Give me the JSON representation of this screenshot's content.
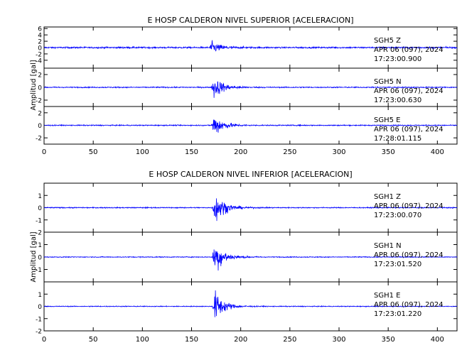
{
  "trace_color": "#0000ff",
  "chart_data": [
    {
      "type": "line",
      "title": "E HOSP CALDERON NIVEL SUPERIOR [ACELERACION]",
      "ylabel": "Amplitud [gal]",
      "xlim": [
        0,
        420
      ],
      "x_ticks": [
        0,
        50,
        100,
        150,
        200,
        250,
        300,
        350,
        400
      ],
      "panels": [
        {
          "station": "SGH5",
          "component": "Z",
          "date_line": "APR 06 (097), 2024",
          "time_line": "17:23:00.900",
          "ylim": [
            -6.5,
            6.5
          ],
          "y_ticks": [
            -4,
            -2,
            0,
            2,
            4,
            6
          ],
          "onset_s": 168,
          "peak_amplitude": 2.6,
          "noise_amplitude": 0.35
        },
        {
          "station": "SGH5",
          "component": "N",
          "date_line": "APR 06 (097), 2024",
          "time_line": "17:23:00.630",
          "ylim": [
            -3,
            3
          ],
          "y_ticks": [
            -2,
            0,
            2
          ],
          "onset_s": 170,
          "peak_amplitude": 2.6,
          "noise_amplitude": 0.12
        },
        {
          "station": "SGH5",
          "component": "E",
          "date_line": "APR 06 (097), 2024",
          "time_line": "17:28:01.115",
          "ylim": [
            -3,
            3
          ],
          "y_ticks": [
            -2,
            0,
            2
          ],
          "onset_s": 170,
          "peak_amplitude": 2.7,
          "noise_amplitude": 0.12
        }
      ]
    },
    {
      "type": "line",
      "title": "E HOSP CALDERON NIVEL INFERIOR [ACELERACION]",
      "ylabel": "Amplitud [gal]",
      "xlim": [
        0,
        420
      ],
      "x_ticks": [
        0,
        50,
        100,
        150,
        200,
        250,
        300,
        350,
        400
      ],
      "panels": [
        {
          "station": "SGH1",
          "component": "Z",
          "date_line": "APR 06 (097), 2024",
          "time_line": "17:23:00.070",
          "ylim": [
            -2,
            2
          ],
          "y_ticks": [
            -2,
            -1,
            0,
            1
          ],
          "onset_s": 171,
          "peak_amplitude": 1.9,
          "noise_amplitude": 0.06
        },
        {
          "station": "SGH1",
          "component": "N",
          "date_line": "APR 06 (097), 2024",
          "time_line": "17:23:01.520",
          "ylim": [
            -2,
            2
          ],
          "y_ticks": [
            -1,
            0,
            1
          ],
          "onset_s": 171,
          "peak_amplitude": 1.9,
          "noise_amplitude": 0.05
        },
        {
          "station": "SGH1",
          "component": "E",
          "date_line": "APR 06 (097), 2024",
          "time_line": "17:23:01.220",
          "ylim": [
            -2,
            2
          ],
          "y_ticks": [
            -2,
            -1,
            0,
            1
          ],
          "onset_s": 171,
          "peak_amplitude": 1.8,
          "noise_amplitude": 0.05
        }
      ]
    }
  ]
}
